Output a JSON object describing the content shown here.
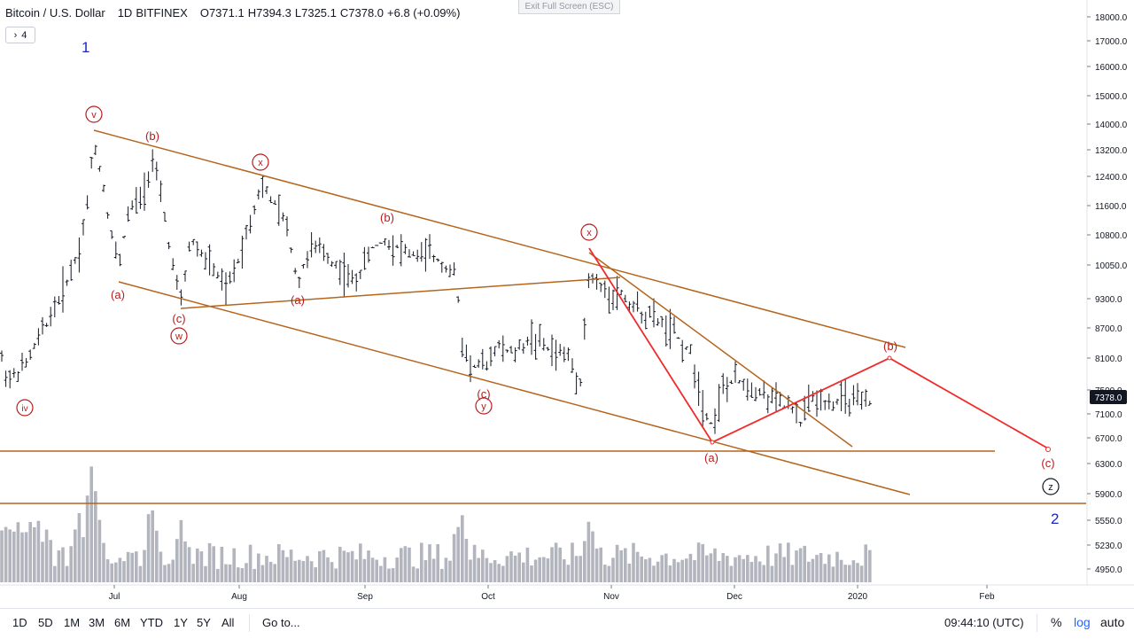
{
  "header": {
    "symbol": "Bitcoin / U.S. Dollar",
    "interval": "1D",
    "exchange": "BITFINEX",
    "open": "O7371.1",
    "high": "H7394.3",
    "low": "L7325.1",
    "close": "C7378.0",
    "change": "+6.8 (+0.09%)"
  },
  "collapse_badge": {
    "icon": "chevron-right-icon",
    "count": "4"
  },
  "exit_fullscreen_label": "Exit Full Screen (ESC)",
  "price_axis": {
    "ticks": [
      "18000.0",
      "17000.0",
      "16000.0",
      "15000.0",
      "14000.0",
      "13200.0",
      "12400.0",
      "11600.0",
      "10800.0",
      "10050.0",
      "9300.0",
      "8700.0",
      "8100.0",
      "7500.0",
      "7100.0",
      "6700.0",
      "6300.0",
      "5900.0",
      "5550.0",
      "5230.0",
      "4950.0"
    ],
    "last_price": "7378.0",
    "last_price_color": "#131722"
  },
  "time_axis": {
    "ticks": [
      "Jul",
      "Aug",
      "Sep",
      "Oct",
      "Nov",
      "Dec",
      "2020",
      "Feb"
    ]
  },
  "wave_labels": {
    "primary_1": "1",
    "primary_2": "2",
    "circled": [
      "v",
      "x",
      "w",
      "iv",
      "x",
      "y",
      "z"
    ],
    "minor": [
      "(b)",
      "(a)",
      "(c)",
      "(a)",
      "(b)",
      "(c)",
      "(a)",
      "(b)",
      "(c)"
    ]
  },
  "colors": {
    "channel_line": "#b5651d",
    "projection_line": "#f02b2b",
    "wave_label": "#b71c1c",
    "primary_label": "#1d26c3",
    "bars": "#131722",
    "volume": "#b2b5be"
  },
  "timeframes": [
    "1D",
    "5D",
    "1M",
    "3M",
    "6M",
    "YTD",
    "1Y",
    "5Y",
    "All"
  ],
  "goto_label": "Go to...",
  "clock": "09:44:10 (UTC)",
  "percent_label": "%",
  "log_label": "log",
  "auto_label": "auto"
}
